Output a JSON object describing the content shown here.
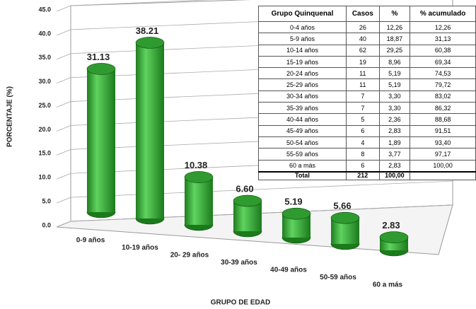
{
  "chart_data": {
    "type": "bar3d",
    "x_label": "GRUPO DE EDAD",
    "y_label": "PORCENTAJE (%)",
    "categories": [
      "0-9 años",
      "10-19 años",
      "20- 29 años",
      "30-39 años",
      "40-49 años",
      "50-59 años",
      "60 a más"
    ],
    "values": [
      31.13,
      38.21,
      10.38,
      6.6,
      5.19,
      5.66,
      2.83
    ],
    "value_labels": [
      "31.13",
      "38.21",
      "10.38",
      "6.60",
      "5.19",
      "5.66",
      "2.83"
    ],
    "color": "#2aa52a",
    "ylim": [
      0,
      45
    ],
    "yticks": [
      {
        "value": 0,
        "label": "0.0"
      },
      {
        "value": 5,
        "label": "5.0"
      },
      {
        "value": 10,
        "label": "10.0"
      },
      {
        "value": 15,
        "label": "15.0"
      },
      {
        "value": 20,
        "label": "20.0"
      },
      {
        "value": 25,
        "label": "25.0"
      },
      {
        "value": 30,
        "label": "30.0"
      },
      {
        "value": 35,
        "label": "35.0"
      },
      {
        "value": 40,
        "label": "40.0"
      },
      {
        "value": 45,
        "label": "45.0"
      }
    ],
    "grid": true
  },
  "table": {
    "header": [
      "Grupo Quinquenal",
      "Casos",
      "%",
      "% acumulado"
    ],
    "rows": [
      [
        "0-4 años",
        "26",
        "12,26",
        "12,26"
      ],
      [
        "5-9 años",
        "40",
        "18,87",
        "31,13"
      ],
      [
        "10-14 años",
        "62",
        "29,25",
        "60,38"
      ],
      [
        "15-19 años",
        "19",
        "8,96",
        "69,34"
      ],
      [
        "20-24 años",
        "11",
        "5,19",
        "74,53"
      ],
      [
        "25-29 años",
        "11",
        "5,19",
        "79,72"
      ],
      [
        "30-34 años",
        "7",
        "3,30",
        "83,02"
      ],
      [
        "35-39 años",
        "7",
        "3,30",
        "86,32"
      ],
      [
        "40-44 años",
        "5",
        "2,36",
        "88,68"
      ],
      [
        "45-49 años",
        "6",
        "2,83",
        "91,51"
      ],
      [
        "50-54 años",
        "4",
        "1,89",
        "93,40"
      ],
      [
        "55-59 años",
        "8",
        "3,77",
        "97,17"
      ],
      [
        "60 a más",
        "6",
        "2,83",
        "100,00"
      ]
    ],
    "total": [
      "Total",
      "212",
      "100,00",
      ""
    ]
  }
}
